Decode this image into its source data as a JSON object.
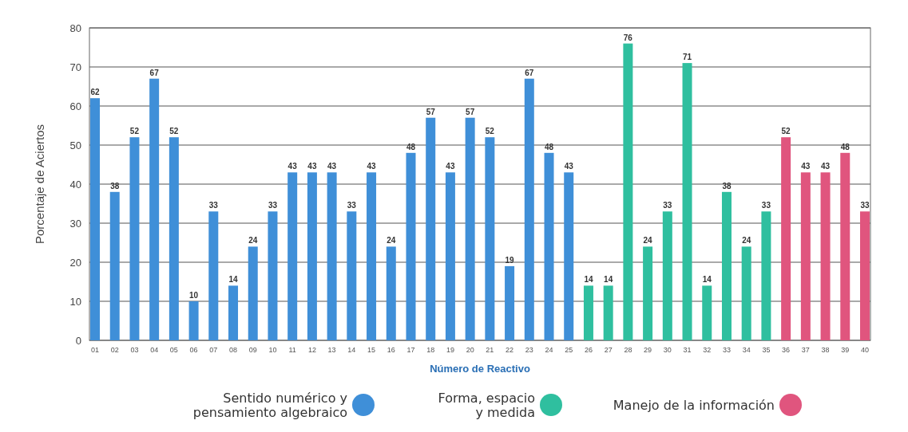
{
  "chart_data": {
    "type": "bar",
    "xlabel": "Número de Reactivo",
    "ylabel": "Porcentaje de Aciertos",
    "categories": [
      "01",
      "02",
      "03",
      "04",
      "05",
      "06",
      "07",
      "08",
      "09",
      "10",
      "11",
      "12",
      "13",
      "14",
      "15",
      "16",
      "17",
      "18",
      "19",
      "20",
      "21",
      "22",
      "23",
      "24",
      "25",
      "26",
      "27",
      "28",
      "29",
      "30",
      "31",
      "32",
      "33",
      "34",
      "35",
      "36",
      "37",
      "38",
      "39",
      "40"
    ],
    "series": [
      {
        "name": "Sentido numérico y pensamiento algebraico",
        "color": "#3f8fd8",
        "values": [
          62,
          38,
          52,
          67,
          52,
          10,
          33,
          14,
          24,
          33,
          43,
          43,
          43,
          33,
          43,
          24,
          48,
          57,
          43,
          57,
          52,
          19,
          67,
          48,
          43,
          null,
          null,
          null,
          null,
          null,
          null,
          null,
          null,
          null,
          null,
          null,
          null,
          null,
          null,
          null
        ]
      },
      {
        "name": "Forma, espacio y medida",
        "color": "#2fbf9f",
        "values": [
          null,
          null,
          null,
          null,
          null,
          null,
          null,
          null,
          null,
          null,
          null,
          null,
          null,
          null,
          null,
          null,
          null,
          null,
          null,
          null,
          null,
          null,
          null,
          null,
          null,
          14,
          14,
          76,
          24,
          33,
          71,
          14,
          38,
          24,
          33,
          null,
          null,
          null,
          null,
          null
        ]
      },
      {
        "name": "Manejo de la información",
        "color": "#e0557e",
        "values": [
          null,
          null,
          null,
          null,
          null,
          null,
          null,
          null,
          null,
          null,
          null,
          null,
          null,
          null,
          null,
          null,
          null,
          null,
          null,
          null,
          null,
          null,
          null,
          null,
          null,
          null,
          null,
          null,
          null,
          null,
          null,
          null,
          null,
          null,
          null,
          52,
          43,
          43,
          48,
          33
        ]
      }
    ],
    "ylim": [
      0,
      80
    ],
    "yticks": [
      0,
      10,
      20,
      30,
      40,
      50,
      60,
      70,
      80
    ],
    "grid": "y",
    "data_labels": true,
    "legend": "bottom"
  }
}
